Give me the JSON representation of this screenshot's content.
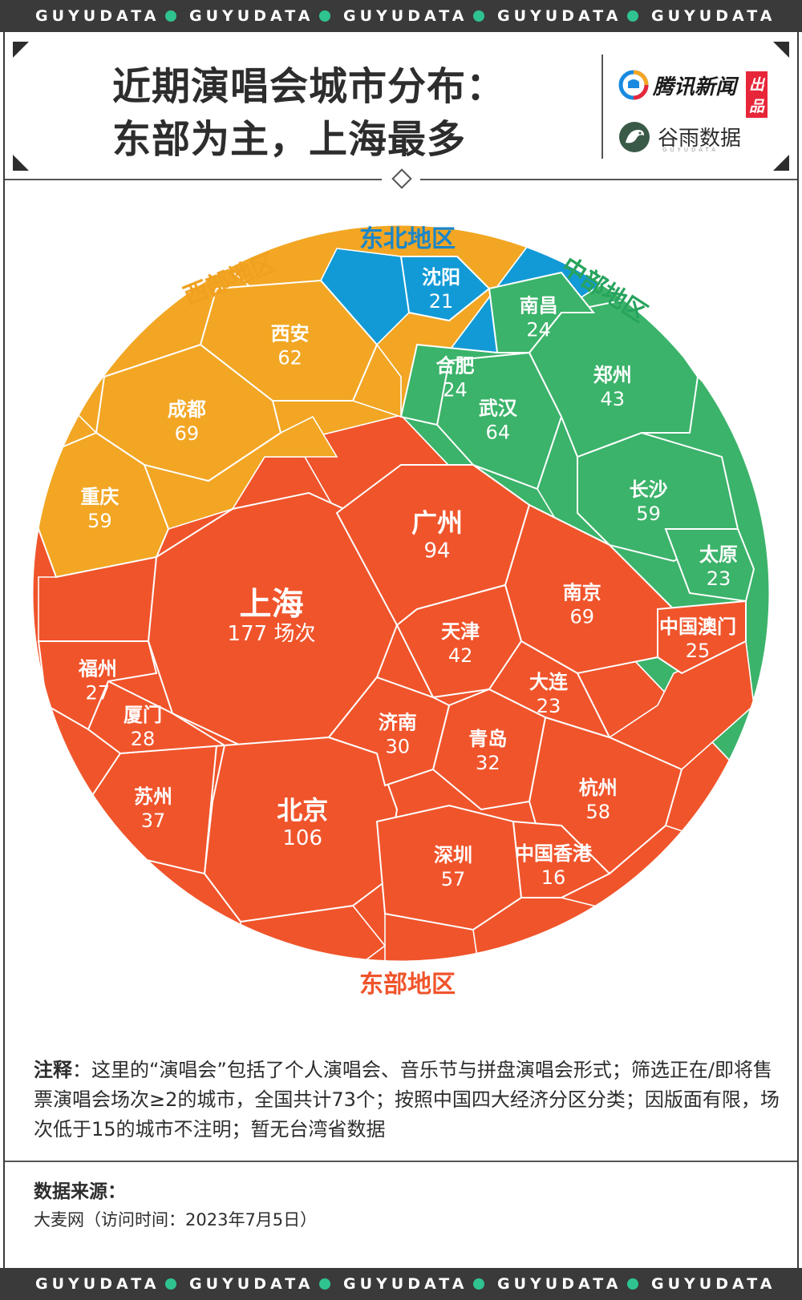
{
  "banner": {
    "word": "GUYUDATA",
    "dot_color": "#2fc38f",
    "repeat": 5
  },
  "header": {
    "title_line1": "近期演唱会城市分布：",
    "title_line2": "东部为主，上海最多",
    "brand1_name": "腾讯新闻",
    "brand1_tag": "出品",
    "brand2_name": "谷雨数据",
    "brand2_sub": "GUYUDATA"
  },
  "chart_data": {
    "type": "voronoi-treemap",
    "unit": "场次",
    "regions": [
      {
        "name": "东部地区",
        "color": "#f0542b",
        "label_color": "#f0542b",
        "cities": [
          {
            "name": "上海",
            "value": 177
          },
          {
            "name": "北京",
            "value": 106
          },
          {
            "name": "广州",
            "value": 94
          },
          {
            "name": "南京",
            "value": 69
          },
          {
            "name": "杭州",
            "value": 58
          },
          {
            "name": "深圳",
            "value": 57
          },
          {
            "name": "天津",
            "value": 42
          },
          {
            "name": "苏州",
            "value": 37
          },
          {
            "name": "青岛",
            "value": 32
          },
          {
            "name": "济南",
            "value": 30
          },
          {
            "name": "厦门",
            "value": 28
          },
          {
            "name": "福州",
            "value": 27
          },
          {
            "name": "中国澳门",
            "value": 25
          },
          {
            "name": "大连",
            "value": 23
          },
          {
            "name": "中国香港",
            "value": 16
          }
        ]
      },
      {
        "name": "中部地区",
        "color": "#3bb36a",
        "label_color": "#27a35c",
        "cities": [
          {
            "name": "武汉",
            "value": 64
          },
          {
            "name": "长沙",
            "value": 59
          },
          {
            "name": "郑州",
            "value": 43
          },
          {
            "name": "南昌",
            "value": 24
          },
          {
            "name": "合肥",
            "value": 24
          },
          {
            "name": "太原",
            "value": 23
          }
        ]
      },
      {
        "name": "西部地区",
        "color": "#f2a623",
        "label_color": "#f0a020",
        "cities": [
          {
            "name": "成都",
            "value": 69
          },
          {
            "name": "西安",
            "value": 62
          },
          {
            "name": "重庆",
            "value": 59
          }
        ]
      },
      {
        "name": "东北地区",
        "color": "#129ad6",
        "label_color": "#1a86c8",
        "cities": [
          {
            "name": "沈阳",
            "value": 21
          }
        ]
      }
    ]
  },
  "note": {
    "label": "注释",
    "text": "：这里的“演唱会”包括了个人演唱会、音乐节与拼盘演唱会形式；筛选正在/即将售票演唱会场次≥2的城市，全国共计73个；按照中国四大经济分区分类；因版面有限，场次低于15的城市不注明；暂无台湾省数据"
  },
  "source": {
    "label": "数据来源：",
    "text": "大麦网（访问时间：2023年7月5日）"
  }
}
